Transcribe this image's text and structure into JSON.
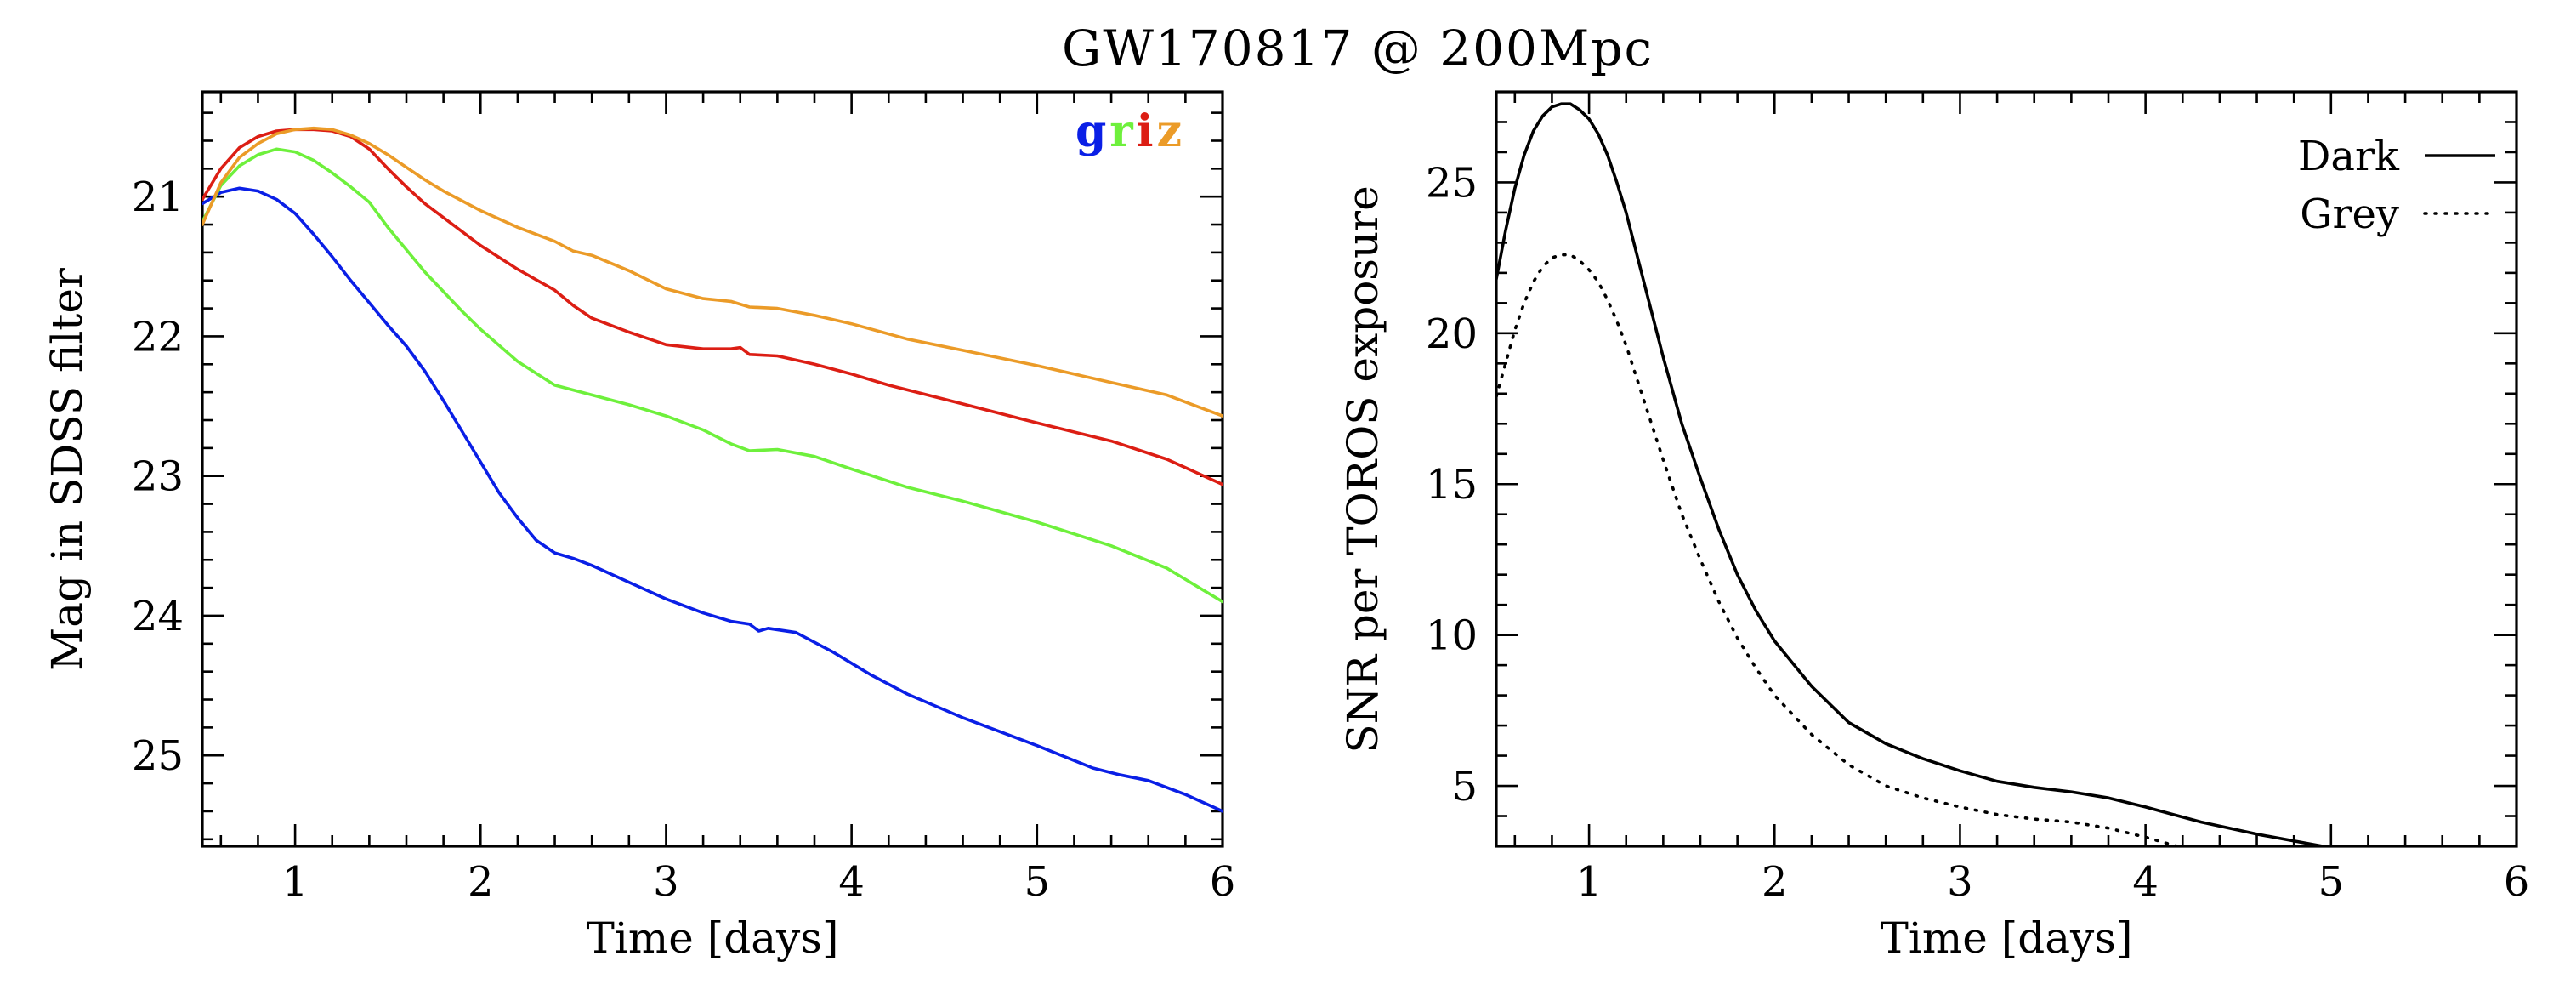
{
  "figure_title": "GW170817 @ 200Mpc",
  "colors": {
    "g": "#0a1fe6",
    "r": "#6ef03c",
    "i": "#dc1e14",
    "z": "#eb9b28",
    "black": "#000000"
  },
  "chart_data": [
    {
      "type": "line",
      "title": "",
      "xlabel": "Time [days]",
      "ylabel": "Mag in SDSS filter",
      "xlim": [
        0.5,
        6
      ],
      "ylim": [
        25.65,
        20.25
      ],
      "y_inverted": true,
      "xticks": [
        1,
        2,
        3,
        4,
        5,
        6
      ],
      "xtick_labels": [
        "1",
        "2",
        "3",
        "4",
        "5",
        "6"
      ],
      "yticks": [
        21,
        22,
        23,
        24,
        25
      ],
      "ytick_labels": [
        "21",
        "22",
        "23",
        "24",
        "25"
      ],
      "legend": {
        "placement": "top-right",
        "entries": [
          {
            "label": "g",
            "color_key": "g"
          },
          {
            "label": "r",
            "color_key": "r"
          },
          {
            "label": "i",
            "color_key": "i"
          },
          {
            "label": "z",
            "color_key": "z"
          }
        ]
      },
      "series": [
        {
          "name": "g",
          "color_key": "g",
          "x": [
            0.5,
            0.6,
            0.7,
            0.8,
            0.9,
            1.0,
            1.1,
            1.2,
            1.3,
            1.4,
            1.5,
            1.6,
            1.7,
            1.8,
            1.9,
            2.0,
            2.1,
            2.2,
            2.3,
            2.4,
            2.5,
            2.6,
            2.8,
            3.0,
            3.2,
            3.35,
            3.45,
            3.5,
            3.55,
            3.7,
            3.9,
            4.1,
            4.3,
            4.6,
            5.0,
            5.3,
            5.45,
            5.6,
            5.8,
            6.0
          ],
          "y": [
            21.05,
            20.97,
            20.94,
            20.96,
            21.02,
            21.12,
            21.27,
            21.43,
            21.6,
            21.76,
            21.92,
            22.07,
            22.25,
            22.46,
            22.68,
            22.9,
            23.12,
            23.3,
            23.46,
            23.55,
            23.59,
            23.64,
            23.76,
            23.88,
            23.98,
            24.04,
            24.06,
            24.11,
            24.09,
            24.12,
            24.26,
            24.42,
            24.56,
            24.73,
            24.93,
            25.09,
            25.14,
            25.18,
            25.28,
            25.4
          ]
        },
        {
          "name": "r",
          "color_key": "r",
          "x": [
            0.5,
            0.6,
            0.7,
            0.8,
            0.9,
            1.0,
            1.1,
            1.2,
            1.3,
            1.4,
            1.5,
            1.6,
            1.7,
            1.8,
            1.9,
            2.0,
            2.2,
            2.4,
            2.6,
            2.8,
            3.0,
            3.2,
            3.35,
            3.45,
            3.6,
            3.8,
            4.0,
            4.3,
            4.6,
            5.0,
            5.4,
            5.7,
            6.0
          ],
          "y": [
            21.18,
            20.92,
            20.78,
            20.7,
            20.66,
            20.68,
            20.74,
            20.83,
            20.93,
            21.04,
            21.22,
            21.38,
            21.54,
            21.68,
            21.82,
            21.95,
            22.18,
            22.35,
            22.42,
            22.49,
            22.57,
            22.67,
            22.77,
            22.82,
            22.81,
            22.86,
            22.95,
            23.08,
            23.18,
            23.33,
            23.5,
            23.66,
            23.9
          ]
        },
        {
          "name": "i",
          "color_key": "i",
          "x": [
            0.5,
            0.6,
            0.7,
            0.8,
            0.9,
            1.0,
            1.1,
            1.2,
            1.3,
            1.4,
            1.5,
            1.6,
            1.7,
            1.8,
            2.0,
            2.2,
            2.4,
            2.5,
            2.6,
            2.8,
            3.0,
            3.2,
            3.35,
            3.4,
            3.45,
            3.6,
            3.8,
            4.0,
            4.2,
            4.5,
            5.0,
            5.4,
            5.7,
            6.0
          ],
          "y": [
            21.02,
            20.8,
            20.65,
            20.57,
            20.53,
            20.52,
            20.52,
            20.53,
            20.57,
            20.66,
            20.8,
            20.93,
            21.05,
            21.15,
            21.35,
            21.52,
            21.67,
            21.78,
            21.87,
            21.97,
            22.06,
            22.09,
            22.09,
            22.08,
            22.13,
            22.14,
            22.2,
            22.27,
            22.35,
            22.45,
            22.62,
            22.75,
            22.88,
            23.06
          ]
        },
        {
          "name": "z",
          "color_key": "z",
          "x": [
            0.5,
            0.6,
            0.7,
            0.8,
            0.9,
            1.0,
            1.1,
            1.2,
            1.3,
            1.4,
            1.5,
            1.6,
            1.7,
            1.8,
            2.0,
            2.2,
            2.4,
            2.5,
            2.6,
            2.8,
            3.0,
            3.2,
            3.35,
            3.45,
            3.6,
            3.8,
            4.0,
            4.3,
            4.6,
            5.0,
            5.4,
            5.7,
            6.0
          ],
          "y": [
            21.2,
            20.9,
            20.72,
            20.62,
            20.55,
            20.52,
            20.51,
            20.52,
            20.56,
            20.62,
            20.7,
            20.79,
            20.88,
            20.96,
            21.1,
            21.22,
            21.32,
            21.39,
            21.42,
            21.53,
            21.66,
            21.73,
            21.75,
            21.79,
            21.8,
            21.85,
            21.91,
            22.02,
            22.1,
            22.21,
            22.33,
            22.42,
            22.57
          ]
        }
      ]
    },
    {
      "type": "line",
      "title": "",
      "xlabel": "Time [days]",
      "ylabel": "SNR per TOROS exposure",
      "xlim": [
        0.5,
        6
      ],
      "ylim": [
        3,
        28
      ],
      "xticks": [
        1,
        2,
        3,
        4,
        5,
        6
      ],
      "xtick_labels": [
        "1",
        "2",
        "3",
        "4",
        "5",
        "6"
      ],
      "yticks": [
        5,
        10,
        15,
        20,
        25
      ],
      "ytick_labels": [
        "5",
        "10",
        "15",
        "20",
        "25"
      ],
      "legend": {
        "placement": "top-right",
        "entries": [
          {
            "label": "Dark",
            "style": "solid"
          },
          {
            "label": "Grey",
            "style": "dotted"
          }
        ]
      },
      "series": [
        {
          "name": "Dark",
          "style": "solid",
          "x": [
            0.5,
            0.55,
            0.6,
            0.65,
            0.7,
            0.75,
            0.8,
            0.85,
            0.9,
            0.95,
            1.0,
            1.05,
            1.1,
            1.15,
            1.2,
            1.3,
            1.4,
            1.5,
            1.6,
            1.7,
            1.8,
            1.9,
            2.0,
            2.2,
            2.4,
            2.6,
            2.8,
            3.0,
            3.2,
            3.4,
            3.6,
            3.8,
            4.0,
            4.3,
            4.6,
            5.0
          ],
          "y": [
            21.8,
            23.4,
            24.8,
            25.9,
            26.7,
            27.2,
            27.5,
            27.6,
            27.6,
            27.4,
            27.1,
            26.6,
            25.9,
            25.0,
            24.0,
            21.6,
            19.2,
            17.0,
            15.2,
            13.5,
            12.0,
            10.8,
            9.8,
            8.3,
            7.1,
            6.4,
            5.9,
            5.5,
            5.15,
            4.95,
            4.8,
            4.6,
            4.3,
            3.8,
            3.4,
            2.95
          ]
        },
        {
          "name": "Grey",
          "style": "dotted",
          "x": [
            0.5,
            0.55,
            0.6,
            0.65,
            0.7,
            0.75,
            0.8,
            0.85,
            0.9,
            0.95,
            1.0,
            1.05,
            1.1,
            1.15,
            1.2,
            1.3,
            1.4,
            1.5,
            1.6,
            1.7,
            1.8,
            1.9,
            2.0,
            2.2,
            2.4,
            2.6,
            2.8,
            3.0,
            3.2,
            3.4,
            3.6,
            3.8,
            4.0,
            4.2
          ],
          "y": [
            17.9,
            19.0,
            20.1,
            21.0,
            21.7,
            22.2,
            22.5,
            22.6,
            22.6,
            22.4,
            22.1,
            21.7,
            21.1,
            20.4,
            19.6,
            17.7,
            15.8,
            14.0,
            12.5,
            11.1,
            9.9,
            8.9,
            8.0,
            6.7,
            5.7,
            5.0,
            4.6,
            4.3,
            4.05,
            3.9,
            3.8,
            3.6,
            3.3,
            2.95
          ]
        }
      ]
    }
  ]
}
